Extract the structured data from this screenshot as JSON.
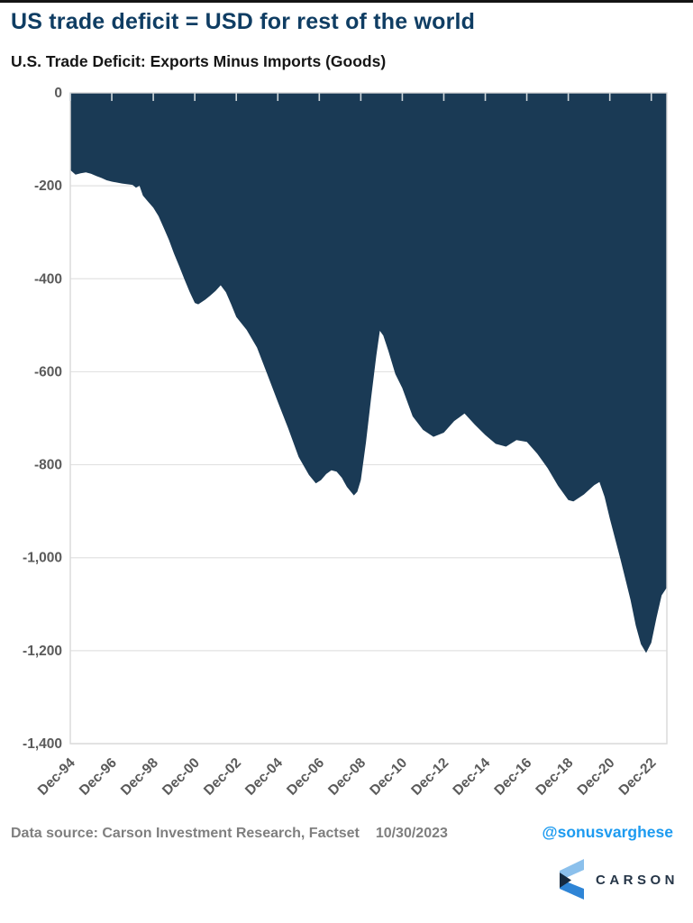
{
  "header": {
    "title": "US trade deficit = USD for rest of the world",
    "subtitle": "U.S. Trade Deficit: Exports Minus Imports (Goods)"
  },
  "chart_data": {
    "type": "area",
    "title": "U.S. Trade Deficit: Exports Minus Imports (Goods)",
    "xlabel": "",
    "ylabel": "",
    "ylim": [
      -1400,
      0
    ],
    "grid": true,
    "fill_color": "#1a3a55",
    "grid_color": "#e2e2e2",
    "frame_color": "#d9d9d9",
    "tick_label_color": "#5a5a5a",
    "yticks": [
      {
        "value": 0,
        "label": "0"
      },
      {
        "value": -200,
        "label": "-200"
      },
      {
        "value": -400,
        "label": "-400"
      },
      {
        "value": -600,
        "label": "-600"
      },
      {
        "value": -800,
        "label": "-800"
      },
      {
        "value": -1000,
        "label": "-1,000"
      },
      {
        "value": -1200,
        "label": "-1,200"
      },
      {
        "value": -1400,
        "label": "-1,400"
      }
    ],
    "xticks": [
      {
        "date": "1994-12",
        "label": "Dec-94"
      },
      {
        "date": "1996-12",
        "label": "Dec-96"
      },
      {
        "date": "1998-12",
        "label": "Dec-98"
      },
      {
        "date": "2000-12",
        "label": "Dec-00"
      },
      {
        "date": "2002-12",
        "label": "Dec-02"
      },
      {
        "date": "2004-12",
        "label": "Dec-04"
      },
      {
        "date": "2006-12",
        "label": "Dec-06"
      },
      {
        "date": "2008-12",
        "label": "Dec-08"
      },
      {
        "date": "2010-12",
        "label": "Dec-10"
      },
      {
        "date": "2012-12",
        "label": "Dec-12"
      },
      {
        "date": "2014-12",
        "label": "Dec-14"
      },
      {
        "date": "2016-12",
        "label": "Dec-16"
      },
      {
        "date": "2018-12",
        "label": "Dec-18"
      },
      {
        "date": "2020-12",
        "label": "Dec-20"
      },
      {
        "date": "2022-12",
        "label": "Dec-22"
      }
    ],
    "points": [
      [
        "1994-12",
        -166
      ],
      [
        "1995-03",
        -176
      ],
      [
        "1995-06",
        -173
      ],
      [
        "1995-09",
        -171
      ],
      [
        "1995-12",
        -174
      ],
      [
        "1996-03",
        -179
      ],
      [
        "1996-06",
        -183
      ],
      [
        "1996-09",
        -188
      ],
      [
        "1996-12",
        -191
      ],
      [
        "1997-06",
        -195
      ],
      [
        "1997-12",
        -198
      ],
      [
        "1998-02",
        -204
      ],
      [
        "1998-04",
        -200
      ],
      [
        "1998-06",
        -221
      ],
      [
        "1998-09",
        -234
      ],
      [
        "1998-12",
        -247
      ],
      [
        "1999-03",
        -265
      ],
      [
        "1999-06",
        -290
      ],
      [
        "1999-09",
        -316
      ],
      [
        "1999-12",
        -346
      ],
      [
        "2000-03",
        -373
      ],
      [
        "2000-06",
        -401
      ],
      [
        "2000-09",
        -428
      ],
      [
        "2000-12",
        -452
      ],
      [
        "2001-02",
        -455
      ],
      [
        "2001-06",
        -445
      ],
      [
        "2001-09",
        -436
      ],
      [
        "2001-12",
        -426
      ],
      [
        "2002-03",
        -414
      ],
      [
        "2002-06",
        -429
      ],
      [
        "2002-09",
        -455
      ],
      [
        "2002-12",
        -482
      ],
      [
        "2003-06",
        -510
      ],
      [
        "2003-12",
        -548
      ],
      [
        "2004-06",
        -606
      ],
      [
        "2004-12",
        -665
      ],
      [
        "2005-06",
        -722
      ],
      [
        "2005-12",
        -783
      ],
      [
        "2006-06",
        -822
      ],
      [
        "2006-10",
        -840
      ],
      [
        "2007-01",
        -833
      ],
      [
        "2007-04",
        -820
      ],
      [
        "2007-07",
        -812
      ],
      [
        "2007-10",
        -815
      ],
      [
        "2008-01",
        -828
      ],
      [
        "2008-04",
        -848
      ],
      [
        "2008-08",
        -866
      ],
      [
        "2008-10",
        -858
      ],
      [
        "2008-12",
        -833
      ],
      [
        "2009-03",
        -752
      ],
      [
        "2009-06",
        -655
      ],
      [
        "2009-09",
        -565
      ],
      [
        "2009-11",
        -512
      ],
      [
        "2010-01",
        -522
      ],
      [
        "2010-04",
        -556
      ],
      [
        "2010-08",
        -605
      ],
      [
        "2010-12",
        -635
      ],
      [
        "2011-06",
        -696
      ],
      [
        "2011-12",
        -725
      ],
      [
        "2012-06",
        -740
      ],
      [
        "2012-12",
        -731
      ],
      [
        "2013-06",
        -706
      ],
      [
        "2013-12",
        -690
      ],
      [
        "2014-06",
        -714
      ],
      [
        "2014-12",
        -736
      ],
      [
        "2015-06",
        -755
      ],
      [
        "2015-12",
        -761
      ],
      [
        "2016-06",
        -747
      ],
      [
        "2016-12",
        -751
      ],
      [
        "2017-06",
        -776
      ],
      [
        "2017-12",
        -807
      ],
      [
        "2018-06",
        -845
      ],
      [
        "2018-12",
        -876
      ],
      [
        "2019-03",
        -879
      ],
      [
        "2019-09",
        -864
      ],
      [
        "2019-12",
        -854
      ],
      [
        "2020-03",
        -844
      ],
      [
        "2020-06",
        -837
      ],
      [
        "2020-09",
        -869
      ],
      [
        "2020-12",
        -916
      ],
      [
        "2021-06",
        -1001
      ],
      [
        "2021-12",
        -1091
      ],
      [
        "2022-03",
        -1146
      ],
      [
        "2022-06",
        -1186
      ],
      [
        "2022-09",
        -1205
      ],
      [
        "2022-12",
        -1183
      ],
      [
        "2023-03",
        -1129
      ],
      [
        "2023-06",
        -1081
      ],
      [
        "2023-09",
        -1064
      ]
    ]
  },
  "footer": {
    "source": "Data source: Carson Investment Research, Factset",
    "date": "10/30/2023",
    "handle": "@sonusvarghese",
    "handle_color": "#1d9bf0"
  },
  "logo": {
    "text": "CARSON",
    "colors": {
      "light": "#8bc0ec",
      "mid": "#2f85d6",
      "dark": "#152a40"
    }
  }
}
